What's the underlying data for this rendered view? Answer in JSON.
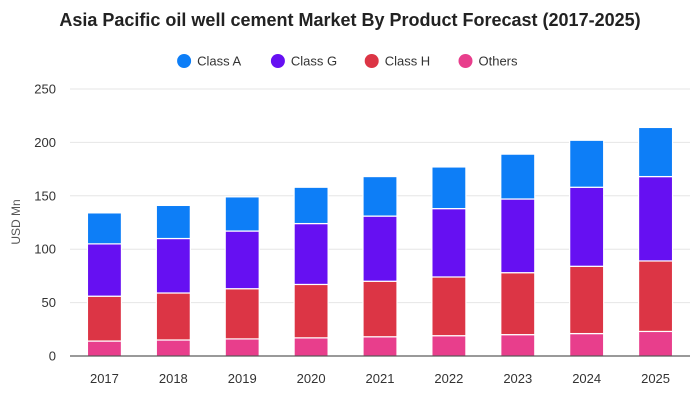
{
  "chart_data": {
    "type": "bar",
    "stacked": true,
    "title": "Asia Pacific oil well cement Market By Product Forecast (2017-2025)",
    "xlabel": "",
    "ylabel": "USD Mn",
    "ylim": [
      0,
      250
    ],
    "yticks": [
      0,
      50,
      100,
      150,
      200,
      250
    ],
    "grid": true,
    "legend_position": "top-center",
    "categories": [
      "2017",
      "2018",
      "2019",
      "2020",
      "2021",
      "2022",
      "2023",
      "2024",
      "2025"
    ],
    "series": [
      {
        "name": "Others",
        "color": "#e83e8c",
        "values": [
          14,
          15,
          16,
          17,
          18,
          19,
          20,
          21,
          23
        ]
      },
      {
        "name": "Class H",
        "color": "#dc3545",
        "values": [
          42,
          44,
          47,
          50,
          52,
          55,
          58,
          63,
          66
        ]
      },
      {
        "name": "Class G",
        "color": "#6610f2",
        "values": [
          49,
          51,
          54,
          57,
          61,
          64,
          69,
          74,
          79
        ]
      },
      {
        "name": "Class A",
        "color": "#0d7ef7",
        "values": [
          29,
          31,
          32,
          34,
          37,
          39,
          42,
          44,
          46
        ]
      }
    ],
    "legend_order": [
      "Class A",
      "Class G",
      "Class H",
      "Others"
    ]
  }
}
